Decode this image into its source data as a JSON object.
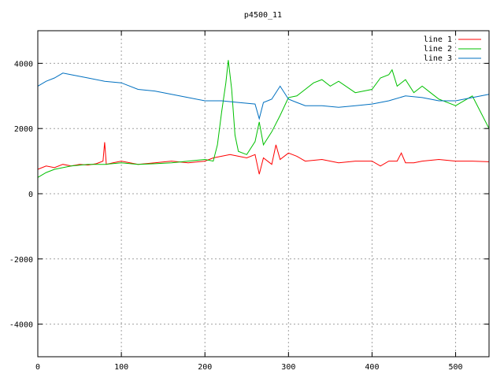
{
  "chart_data": {
    "type": "line",
    "title": "p4500_11",
    "xlabel": "",
    "ylabel": "",
    "xlim": [
      0,
      540
    ],
    "ylim": [
      -5000,
      5000
    ],
    "xticks": [
      0,
      100,
      200,
      300,
      400,
      500
    ],
    "yticks": [
      -4000,
      -2000,
      0,
      2000,
      4000
    ],
    "grid": true,
    "legend_position": "top-right",
    "series": [
      {
        "name": "line 1",
        "color": "#ff0000",
        "x": [
          0,
          10,
          20,
          30,
          40,
          50,
          60,
          70,
          78,
          80,
          82,
          90,
          100,
          120,
          140,
          160,
          180,
          200,
          210,
          220,
          230,
          240,
          250,
          260,
          265,
          270,
          280,
          285,
          290,
          300,
          310,
          320,
          340,
          360,
          380,
          400,
          410,
          420,
          430,
          435,
          440,
          450,
          460,
          480,
          500,
          520,
          540
        ],
        "y": [
          750,
          850,
          800,
          900,
          850,
          900,
          880,
          920,
          1000,
          1580,
          900,
          950,
          1000,
          900,
          950,
          1000,
          950,
          1000,
          1100,
          1150,
          1200,
          1150,
          1100,
          1200,
          600,
          1100,
          900,
          1500,
          1050,
          1250,
          1150,
          1000,
          1050,
          950,
          1000,
          1000,
          850,
          1000,
          1000,
          1250,
          950,
          950,
          1000,
          1050,
          1000,
          1000,
          980
        ]
      },
      {
        "name": "line 2",
        "color": "#00c000",
        "x": [
          0,
          10,
          20,
          30,
          40,
          60,
          80,
          100,
          120,
          140,
          160,
          180,
          200,
          210,
          215,
          220,
          225,
          228,
          232,
          236,
          240,
          250,
          260,
          265,
          270,
          280,
          290,
          300,
          310,
          320,
          330,
          340,
          350,
          360,
          380,
          400,
          410,
          420,
          424,
          430,
          440,
          450,
          460,
          470,
          480,
          500,
          520,
          530,
          540
        ],
        "y": [
          500,
          650,
          750,
          800,
          850,
          900,
          900,
          950,
          900,
          920,
          950,
          1000,
          1050,
          1000,
          1500,
          2500,
          3400,
          4100,
          3200,
          1800,
          1300,
          1200,
          1600,
          2200,
          1500,
          1900,
          2400,
          2950,
          3000,
          3200,
          3400,
          3500,
          3300,
          3450,
          3100,
          3200,
          3550,
          3650,
          3800,
          3300,
          3500,
          3100,
          3300,
          3100,
          2900,
          2700,
          3000,
          2500,
          2000
        ]
      },
      {
        "name": "line 3",
        "color": "#0070c0",
        "x": [
          0,
          10,
          20,
          30,
          40,
          60,
          80,
          100,
          120,
          140,
          160,
          180,
          200,
          220,
          240,
          260,
          265,
          270,
          280,
          290,
          300,
          310,
          320,
          340,
          360,
          380,
          400,
          420,
          440,
          460,
          480,
          500,
          520,
          540
        ],
        "y": [
          3300,
          3450,
          3550,
          3700,
          3650,
          3550,
          3450,
          3400,
          3200,
          3150,
          3050,
          2950,
          2850,
          2850,
          2800,
          2750,
          2300,
          2800,
          2900,
          3300,
          2900,
          2800,
          2700,
          2700,
          2650,
          2700,
          2750,
          2850,
          3000,
          2950,
          2850,
          2850,
          2950,
          3050
        ]
      }
    ]
  }
}
